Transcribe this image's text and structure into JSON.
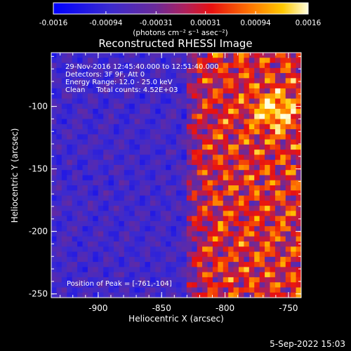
{
  "colorbar": {
    "ticks": [
      "-0.0016",
      "-0.00094",
      "-0.00031",
      "0.00031",
      "0.00094",
      "0.0016"
    ],
    "units": "(photons cm⁻² s⁻¹ asec⁻²)",
    "range": [
      -0.0016,
      0.0016
    ]
  },
  "footer": {
    "timestamp": "5-Sep-2022 15:03"
  },
  "chart_data": {
    "type": "heatmap",
    "title": "Reconstructed RHESSI Image",
    "xlabel": "Heliocentric X (arcsec)",
    "ylabel": "Heliocentric Y (arcsec)",
    "xlim": [
      -937,
      -740
    ],
    "ylim": [
      -253,
      -57
    ],
    "x_ticks": [
      "-900",
      "-850",
      "-800",
      "-750"
    ],
    "x_tick_values": [
      -900,
      -850,
      -800,
      -750
    ],
    "y_ticks": [
      "-100",
      "-150",
      "-200",
      "-250"
    ],
    "y_tick_values": [
      -100,
      -150,
      -200,
      -250
    ],
    "annotations": [
      "29-Nov-2016 12:45:40.000 to 12:51:40.000",
      "Detectors: 3F 9F, Att 0",
      "Energy Range: 12.0 - 25.0 keV",
      "Clean     Total counts: 4.52E+03"
    ],
    "peak_label": "Position of Peak = [-761,-104]",
    "peak": [
      -761,
      -104
    ],
    "colors": {
      "low": "#0000ff",
      "mid": "#6a2a9a",
      "high": "#ff4400",
      "max": "#ffffc8"
    }
  }
}
